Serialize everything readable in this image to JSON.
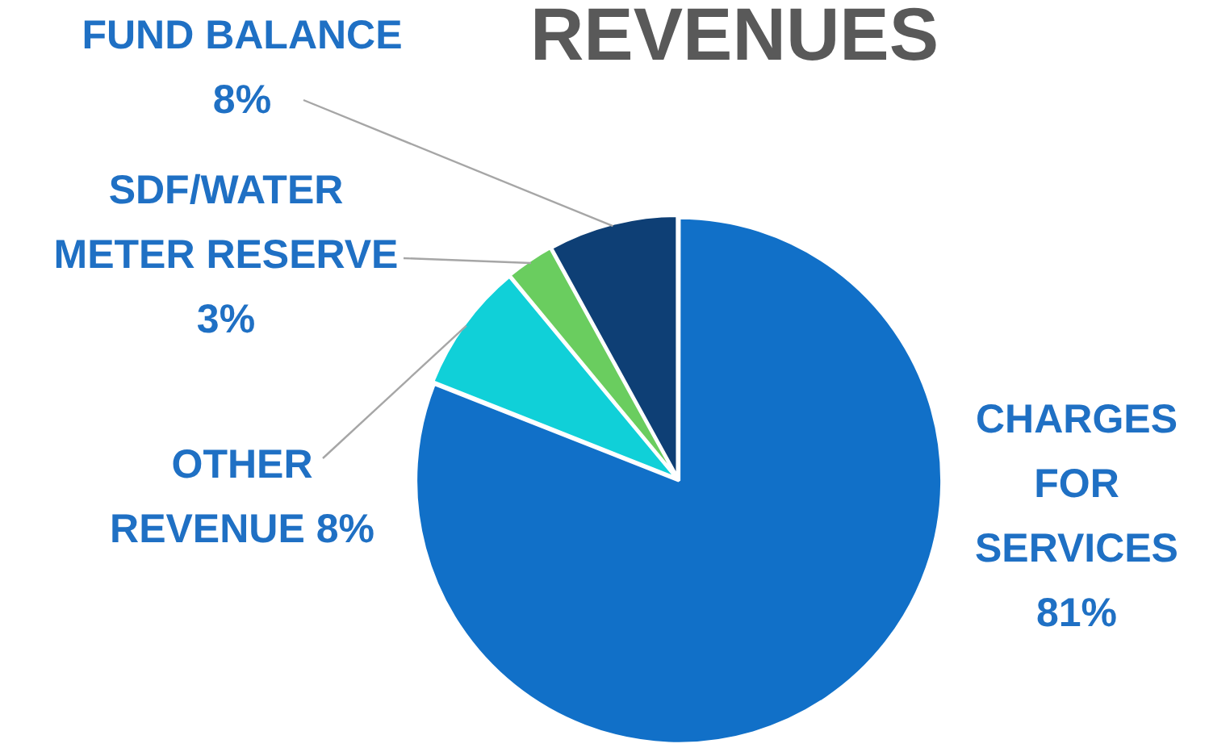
{
  "chart_data": {
    "type": "pie",
    "title": "REVENUES",
    "categories": [
      "CHARGES FOR SERVICES",
      "OTHER REVENUE",
      "SDF/WATER METER RESERVE",
      "FUND BALANCE"
    ],
    "values": [
      81,
      8,
      3,
      8
    ],
    "value_labels": [
      "81%",
      "8%",
      "3%",
      "8%"
    ],
    "colors": [
      "#1170c8",
      "#10d0d8",
      "#6acd5f",
      "#0e3f75"
    ],
    "legend": false
  }
}
